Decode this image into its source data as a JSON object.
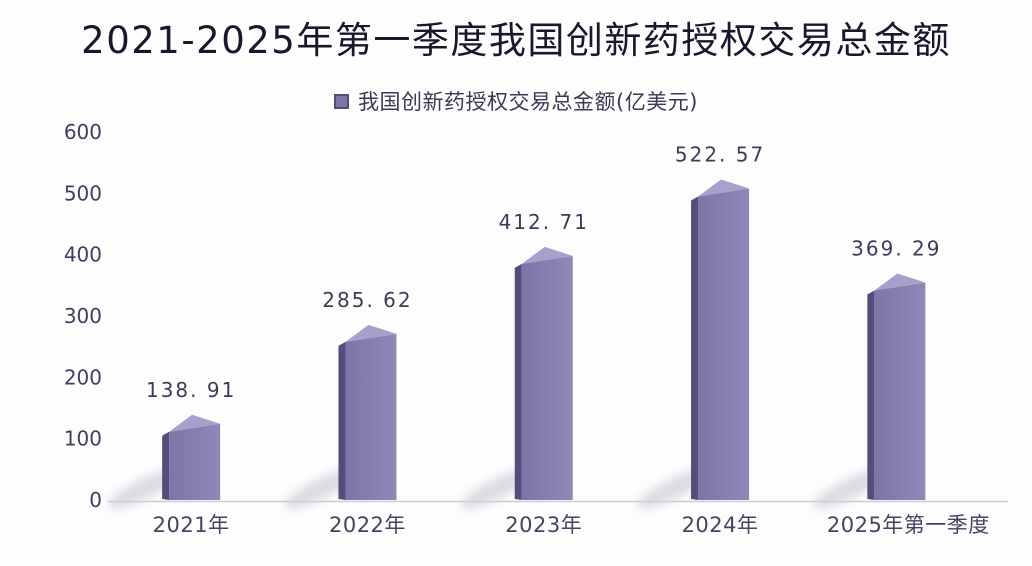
{
  "title": {
    "text": "2021-2025年第一季度我国创新药授权交易总金额"
  },
  "legend": {
    "label": "我国创新药授权交易总金额(亿美元)",
    "marker": "square"
  },
  "colors": {
    "background": "#fdfdfe",
    "title_text": "#18182c",
    "bar_front_left": "#7b76a6",
    "bar_front_right": "#8e89b9",
    "bar_side": "#524d7b",
    "bar_top": "#a5a1cb",
    "axis_line": "#cdccd6",
    "tick_text": "#413f5e",
    "value_text": "#3d3c58",
    "category_text": "#45435f",
    "shadow": "#8f8fa5"
  },
  "chart_data": {
    "type": "bar",
    "bar_style": "3d",
    "title": "2021-2025年第一季度我国创新药授权交易总金额",
    "legend_entries": [
      "我国创新药授权交易总金额(亿美元)"
    ],
    "legend_position": "top",
    "categories": [
      "2021年",
      "2022年",
      "2023年",
      "2024年",
      "2025年第一季度"
    ],
    "values": [
      138.91,
      285.62,
      412.71,
      522.57,
      369.29
    ],
    "value_labels": [
      "138. 91",
      "285. 62",
      "412. 71",
      "522. 57",
      "369. 29"
    ],
    "xlabel": "",
    "ylabel": "",
    "ylim": [
      0,
      600
    ],
    "y_ticks": [
      0,
      100,
      200,
      300,
      400,
      500,
      600
    ],
    "grid": false
  }
}
